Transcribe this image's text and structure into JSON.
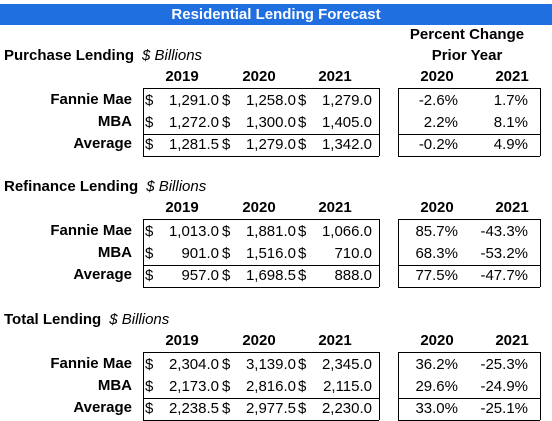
{
  "title": "Residential Lending Forecast",
  "percent_change_header": [
    "Percent Change",
    "Prior Year"
  ],
  "sections": [
    {
      "label": "Purchase Lending",
      "unit": "$ Billions",
      "years": [
        "2019",
        "2020",
        "2021"
      ],
      "pct_years": [
        "2020",
        "2021"
      ],
      "rows": [
        {
          "name": "Fannie Mae",
          "v": [
            [
              "$",
              "1,291.0"
            ],
            [
              "$",
              "1,258.0"
            ],
            [
              "$",
              "1,279.0"
            ]
          ],
          "p": [
            "-2.6%",
            "1.7%"
          ]
        },
        {
          "name": "MBA",
          "v": [
            [
              "$",
              "1,272.0"
            ],
            [
              "$",
              "1,300.0"
            ],
            [
              "$",
              "1,405.0"
            ]
          ],
          "p": [
            "2.2%",
            "8.1%"
          ]
        },
        {
          "name": "Average",
          "v": [
            [
              "$",
              "1,281.5"
            ],
            [
              "$",
              "1,279.0"
            ],
            [
              "$",
              "1,342.0"
            ]
          ],
          "p": [
            "-0.2%",
            "4.9%"
          ]
        }
      ]
    },
    {
      "label": "Refinance Lending",
      "unit": "$ Billions",
      "years": [
        "2019",
        "2020",
        "2021"
      ],
      "pct_years": [
        "2020",
        "2021"
      ],
      "rows": [
        {
          "name": "Fannie Mae",
          "v": [
            [
              "$",
              "1,013.0"
            ],
            [
              "$",
              "1,881.0"
            ],
            [
              "$",
              "1,066.0"
            ]
          ],
          "p": [
            "85.7%",
            "-43.3%"
          ]
        },
        {
          "name": "MBA",
          "v": [
            [
              "$",
              "901.0"
            ],
            [
              "$",
              "1,516.0"
            ],
            [
              "$",
              "710.0"
            ]
          ],
          "p": [
            "68.3%",
            "-53.2%"
          ]
        },
        {
          "name": "Average",
          "v": [
            [
              "$",
              "957.0"
            ],
            [
              "$",
              "1,698.5"
            ],
            [
              "$",
              "888.0"
            ]
          ],
          "p": [
            "77.5%",
            "-47.7%"
          ]
        }
      ]
    },
    {
      "label": "Total Lending",
      "unit": "$ Billions",
      "years": [
        "2019",
        "2020",
        "2021"
      ],
      "pct_years": [
        "2020",
        "2021"
      ],
      "rows": [
        {
          "name": "Fannie Mae",
          "v": [
            [
              "$",
              "2,304.0"
            ],
            [
              "$",
              "3,139.0"
            ],
            [
              "$",
              "2,345.0"
            ]
          ],
          "p": [
            "36.2%",
            "-25.3%"
          ]
        },
        {
          "name": "MBA",
          "v": [
            [
              "$",
              "2,173.0"
            ],
            [
              "$",
              "2,816.0"
            ],
            [
              "$",
              "2,115.0"
            ]
          ],
          "p": [
            "29.6%",
            "-24.9%"
          ]
        },
        {
          "name": "Average",
          "v": [
            [
              "$",
              "2,238.5"
            ],
            [
              "$",
              "2,977.5"
            ],
            [
              "$",
              "2,230.0"
            ]
          ],
          "p": [
            "33.0%",
            "-25.1%"
          ]
        }
      ]
    }
  ]
}
